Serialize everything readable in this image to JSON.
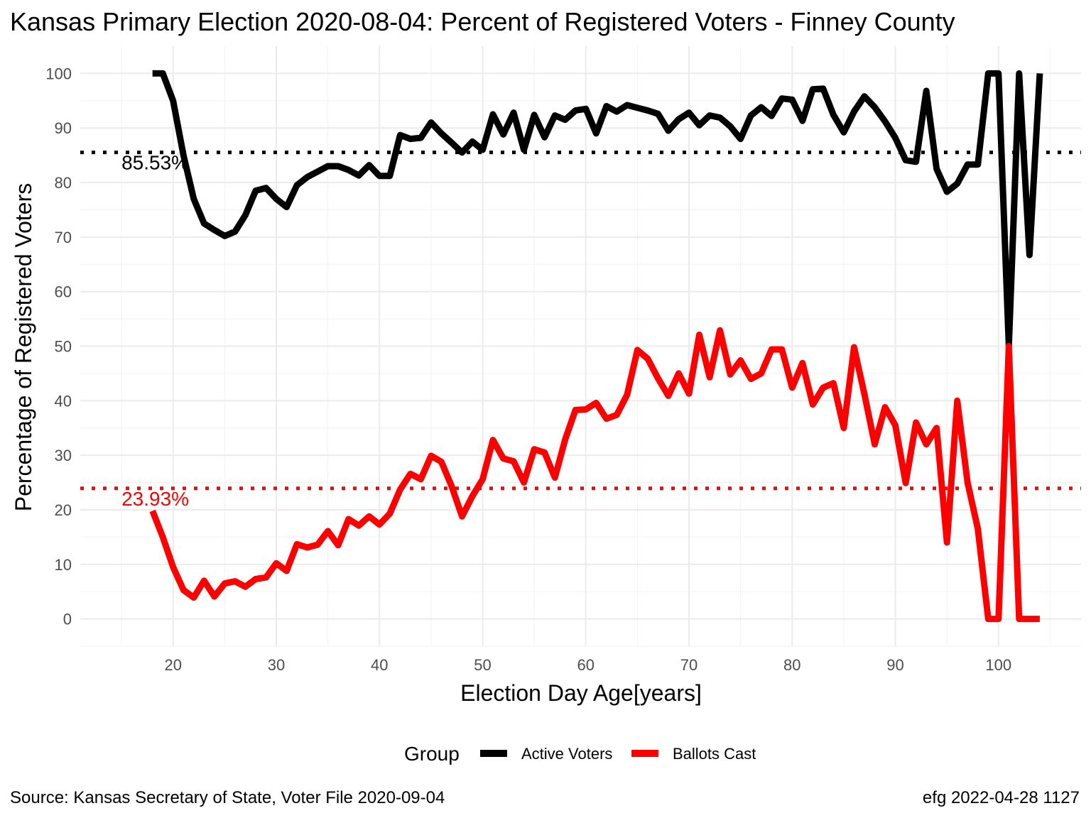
{
  "chart_data": {
    "type": "line",
    "title": "Kansas Primary Election 2020-08-04:  Percent of Registered Voters - Finney County",
    "xlabel": "Election Day Age[years]",
    "ylabel": "Percentage of Registered Voters",
    "xlim": [
      11,
      108
    ],
    "ylim": [
      -5,
      105
    ],
    "x_ticks": [
      20,
      30,
      40,
      50,
      60,
      70,
      80,
      90,
      100
    ],
    "y_ticks": [
      0,
      10,
      20,
      30,
      40,
      50,
      60,
      70,
      80,
      90,
      100
    ],
    "grid": true,
    "legend": {
      "title": "Group",
      "placement": "bottom",
      "entries": [
        "Active Voters",
        "Ballots Cast"
      ]
    },
    "series": [
      {
        "name": "Active Voters",
        "color": "#000000",
        "x": [
          18,
          19,
          20,
          21,
          22,
          23,
          24,
          25,
          26,
          27,
          28,
          29,
          30,
          31,
          32,
          33,
          34,
          35,
          36,
          37,
          38,
          39,
          40,
          41,
          42,
          43,
          44,
          45,
          46,
          47,
          48,
          49,
          50,
          51,
          52,
          53,
          54,
          55,
          56,
          57,
          58,
          59,
          60,
          61,
          62,
          63,
          64,
          65,
          66,
          67,
          68,
          69,
          70,
          71,
          72,
          73,
          74,
          75,
          76,
          77,
          78,
          79,
          80,
          81,
          82,
          83,
          84,
          85,
          86,
          87,
          88,
          89,
          90,
          91,
          92,
          93,
          94,
          95,
          96,
          97,
          98,
          99,
          100,
          101,
          102,
          103,
          104
        ],
        "y": [
          100,
          100,
          95,
          85,
          77,
          72.5,
          71.3,
          70.2,
          71,
          74,
          78.5,
          79,
          77,
          75.5,
          79.5,
          81,
          82,
          83,
          83,
          82.3,
          81.3,
          83.2,
          81.2,
          81.2,
          88.7,
          88,
          88.2,
          91,
          89,
          87.3,
          85.5,
          87.5,
          86,
          92.5,
          88.8,
          92.8,
          86,
          92.4,
          88.3,
          92.3,
          91.5,
          93.2,
          93.5,
          89,
          94,
          93,
          94.2,
          93.7,
          93.2,
          92.6,
          89.5,
          91.6,
          92.8,
          90.5,
          92.3,
          91.9,
          90.3,
          88,
          92.3,
          93.8,
          92.2,
          95.4,
          95.2,
          91.3,
          97.1,
          97.2,
          92.4,
          89.2,
          93,
          95.8,
          93.8,
          91.2,
          88.2,
          84.1,
          83.8,
          96.8,
          82.5,
          78.3,
          79.8,
          83.3,
          83.3,
          100,
          100,
          50,
          100,
          66.7,
          100
        ]
      },
      {
        "name": "Ballots Cast",
        "color": "#ff0000",
        "x": [
          18,
          19,
          20,
          21,
          22,
          23,
          24,
          25,
          26,
          27,
          28,
          29,
          30,
          31,
          32,
          33,
          34,
          35,
          36,
          37,
          38,
          39,
          40,
          41,
          42,
          43,
          44,
          45,
          46,
          47,
          48,
          49,
          50,
          51,
          52,
          53,
          54,
          55,
          56,
          57,
          58,
          59,
          60,
          61,
          62,
          63,
          64,
          65,
          66,
          67,
          68,
          69,
          70,
          71,
          72,
          73,
          74,
          75,
          76,
          77,
          78,
          79,
          80,
          81,
          82,
          83,
          84,
          85,
          86,
          87,
          88,
          89,
          90,
          91,
          92,
          93,
          94,
          95,
          96,
          97,
          98,
          99,
          100,
          101,
          102,
          103,
          104
        ],
        "y": [
          19.8,
          15,
          9.5,
          5.3,
          3.9,
          7,
          4.1,
          6.5,
          6.9,
          5.9,
          7.3,
          7.6,
          10.2,
          8.8,
          13.7,
          13.1,
          13.6,
          16.1,
          13.5,
          18.3,
          17.1,
          18.8,
          17.3,
          19.3,
          23.7,
          26.6,
          25.6,
          29.9,
          28.8,
          24.3,
          18.8,
          22.5,
          25.6,
          32.8,
          29.4,
          28.9,
          25,
          31.1,
          30.5,
          25.9,
          32.9,
          38.3,
          38.4,
          39.6,
          36.7,
          37.4,
          41.1,
          49.3,
          47.7,
          44.1,
          40.9,
          45,
          41.3,
          52.1,
          44.3,
          52.9,
          44.8,
          47.4,
          44,
          45,
          49.4,
          49.4,
          42.4,
          46.9,
          39.3,
          42.4,
          43.2,
          35,
          49.8,
          41.2,
          32,
          38.8,
          35.5,
          24.9,
          36,
          32,
          35,
          14,
          40,
          25,
          16.5,
          0,
          0,
          50,
          0,
          0,
          0
        ]
      }
    ],
    "reference_lines": [
      {
        "series": "Active Voters",
        "value": 85.53,
        "label": "85.53%",
        "color": "#000000",
        "style": "dotted"
      },
      {
        "series": "Ballots Cast",
        "value": 23.93,
        "label": "23.93%",
        "color": "#ff0000",
        "style": "dotted"
      }
    ]
  },
  "caption": {
    "left": "Source:  Kansas Secretary of State, Voter File  2020-09-04",
    "right": "efg 2022-04-28 1127"
  }
}
